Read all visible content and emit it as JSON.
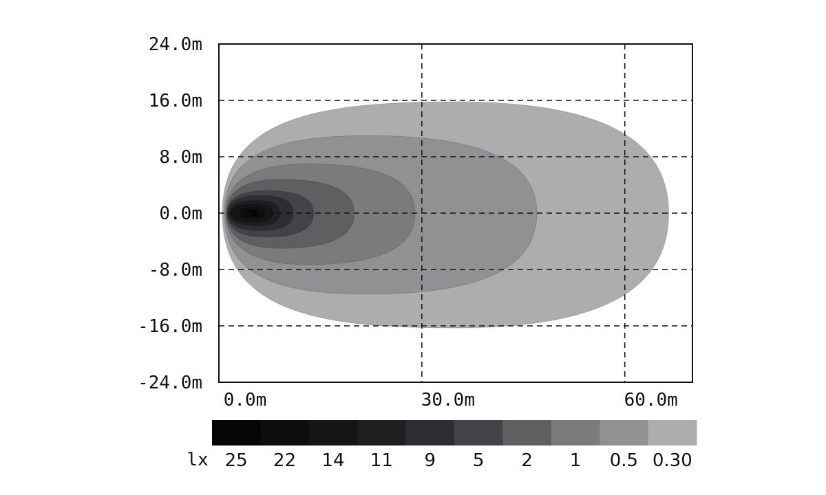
{
  "chart_data": {
    "type": "heatmap",
    "title": "",
    "xlabel": "",
    "ylabel": "",
    "xlim": [
      0,
      70
    ],
    "ylim": [
      -24,
      24
    ],
    "x_ticks": [
      0,
      30,
      60
    ],
    "x_tick_labels": [
      "0.0m",
      "30.0m",
      "60.0m"
    ],
    "y_ticks": [
      24,
      16,
      8,
      0,
      -8,
      -16,
      -24
    ],
    "y_tick_labels": [
      "24.0m",
      "16.0m",
      "8.0m",
      "0.0m",
      "-8.0m",
      "-16.0m",
      "-24.0m"
    ],
    "grid": "dashed",
    "grid_x": [
      30,
      60
    ],
    "grid_y": [
      16,
      8,
      0,
      -8,
      -16
    ],
    "legend_position": "bottom",
    "legend_unit": "lx",
    "levels": [
      {
        "label": "25",
        "color": "#050505"
      },
      {
        "label": "22",
        "color": "#0d0e10"
      },
      {
        "label": "14",
        "color": "#151517"
      },
      {
        "label": "11",
        "color": "#1f1f22"
      },
      {
        "label": "9",
        "color": "#2e2e32"
      },
      {
        "label": "5",
        "color": "#434347"
      },
      {
        "label": "2",
        "color": "#5f5f62"
      },
      {
        "label": "1",
        "color": "#7b7b7e"
      },
      {
        "label": "0.5",
        "color": "#919194"
      },
      {
        "label": "0.30",
        "color": "#adadad"
      }
    ],
    "contours": [
      {
        "level": "0.30",
        "x_min": 0.5,
        "x_max": 66.5,
        "y_min": -16.3,
        "y_max": 15.8,
        "x_peak": 35
      },
      {
        "level": "0.5",
        "x_min": 0.8,
        "x_max": 47,
        "y_min": -11.5,
        "y_max": 11.0,
        "x_peak": 22
      },
      {
        "level": "1",
        "x_min": 1.0,
        "x_max": 29,
        "y_min": -7.3,
        "y_max": 7.0,
        "x_peak": 13
      },
      {
        "level": "2",
        "x_min": 1.1,
        "x_max": 20,
        "y_min": -5.0,
        "y_max": 4.8,
        "x_peak": 9
      },
      {
        "level": "5",
        "x_min": 1.2,
        "x_max": 14,
        "y_min": -3.4,
        "y_max": 3.2,
        "x_peak": 7
      },
      {
        "level": "9",
        "x_min": 1.3,
        "x_max": 11,
        "y_min": -2.5,
        "y_max": 2.5,
        "x_peak": 6
      },
      {
        "level": "11",
        "x_min": 1.5,
        "x_max": 9,
        "y_min": -1.8,
        "y_max": 1.8,
        "x_peak": 5.5
      },
      {
        "level": "14",
        "x_min": 1.8,
        "x_max": 8,
        "y_min": -1.3,
        "y_max": 1.3,
        "x_peak": 5
      },
      {
        "level": "22",
        "x_min": 3.0,
        "x_max": 6.8,
        "y_min": -0.8,
        "y_max": 0.8,
        "x_peak": 5
      },
      {
        "level": "25",
        "x_min": 4.2,
        "x_max": 6.0,
        "y_min": -0.4,
        "y_max": 0.4,
        "x_peak": 5
      }
    ]
  }
}
